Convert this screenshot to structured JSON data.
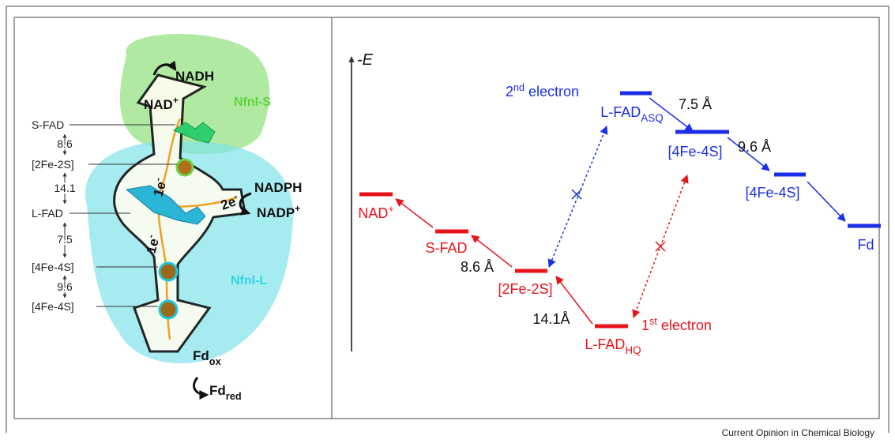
{
  "left_panel": {
    "cofactors": [
      "S-FAD",
      "[2Fe-2S]",
      "L-FAD",
      "[4Fe-4S]",
      "[4Fe-4S]"
    ],
    "distances": [
      "8.6",
      "14.1",
      "7.5",
      "9.6"
    ],
    "top_product": "NADH",
    "top_substrate": {
      "text": "NAD",
      "sup": "+"
    },
    "subunit_s": "NfnI-S",
    "subunit_l": "NfnI-L",
    "right_substrate": "NADPH",
    "right_product": {
      "text": "NADP",
      "sup": "+"
    },
    "two_electron": {
      "text": "2e",
      "sup": "-"
    },
    "one_electron_upper": {
      "text": "1e",
      "sup": "-"
    },
    "one_electron_lower": {
      "text": "1e",
      "sup": "-"
    },
    "bottom_substrate": {
      "text": "Fd",
      "sub": "ox"
    },
    "bottom_product": {
      "text": "Fd",
      "sub": "red"
    }
  },
  "right_panel": {
    "axis_label": "-E",
    "levels": [
      {
        "text": "NAD",
        "sup": "+",
        "color": "#e8141b"
      },
      {
        "text": "S-FAD",
        "color": "#e8141b"
      },
      {
        "text": "[2Fe-2S]",
        "color": "#e8141b"
      },
      {
        "text": "L-FAD",
        "sub": "HQ",
        "color": "#e8141b"
      },
      {
        "text": "L-FAD",
        "sub": "ASQ",
        "color": "#1a2ee8"
      },
      {
        "text": "[4Fe-4S]",
        "color": "#1a2ee8"
      },
      {
        "text": "[4Fe-4S]",
        "color": "#1a2ee8"
      },
      {
        "text": "Fd",
        "color": "#1a2ee8"
      }
    ],
    "distances": [
      "8.6 Å",
      "14.1Å",
      "7.5 Å",
      "9.6 Å"
    ],
    "second_electron": {
      "num": "2",
      "sup": "nd",
      "text": "electron"
    },
    "first_electron": {
      "num": "1",
      "sup": "st",
      "text": "electron"
    }
  },
  "footer": "Current Opinion in Chemical Biology"
}
